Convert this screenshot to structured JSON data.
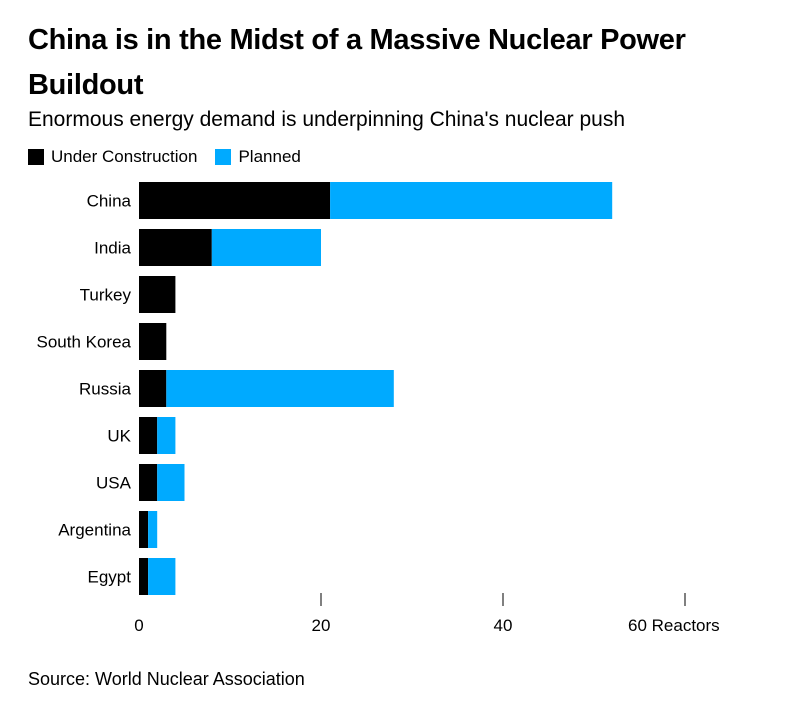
{
  "title": "China is in the Midst of a Massive Nuclear Power Buildout",
  "subtitle": "Enormous energy demand is underpinning China's nuclear push",
  "source": "Source: World Nuclear Association",
  "colors": {
    "under_construction": "#000000",
    "planned": "#00aaff"
  },
  "chart_data": {
    "type": "bar",
    "orientation": "horizontal",
    "stacked": true,
    "categories": [
      "China",
      "India",
      "Turkey",
      "South Korea",
      "Russia",
      "UK",
      "USA",
      "Argentina",
      "Egypt"
    ],
    "series": [
      {
        "name": "Under Construction",
        "values": [
          21,
          8,
          4,
          3,
          3,
          2,
          2,
          1,
          1
        ]
      },
      {
        "name": "Planned",
        "values": [
          31,
          12,
          0,
          0,
          25,
          2,
          3,
          1,
          3
        ]
      }
    ],
    "xlim": [
      0,
      60
    ],
    "xticks": [
      0,
      20,
      40,
      60
    ],
    "xtick_labels": [
      "0",
      "20",
      "40",
      "60 Reactors"
    ],
    "legend": "top-left",
    "grid": false
  }
}
